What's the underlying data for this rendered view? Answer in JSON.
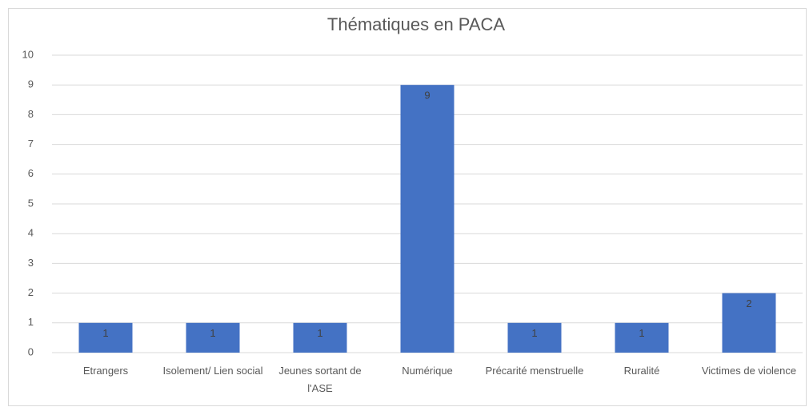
{
  "chart_data": {
    "type": "bar",
    "title": "Thématiques en PACA",
    "categories": [
      "Etrangers",
      "Isolement/ Lien social",
      "Jeunes sortant de l'ASE",
      "Numérique",
      "Précarité menstruelle",
      "Ruralité",
      "Victimes de violence"
    ],
    "values": [
      1,
      1,
      1,
      9,
      1,
      1,
      2
    ],
    "color": "#4472c4",
    "ylim": [
      0,
      10
    ],
    "yticks": [
      0,
      1,
      2,
      3,
      4,
      5,
      6,
      7,
      8,
      9,
      10
    ],
    "grid": true
  }
}
